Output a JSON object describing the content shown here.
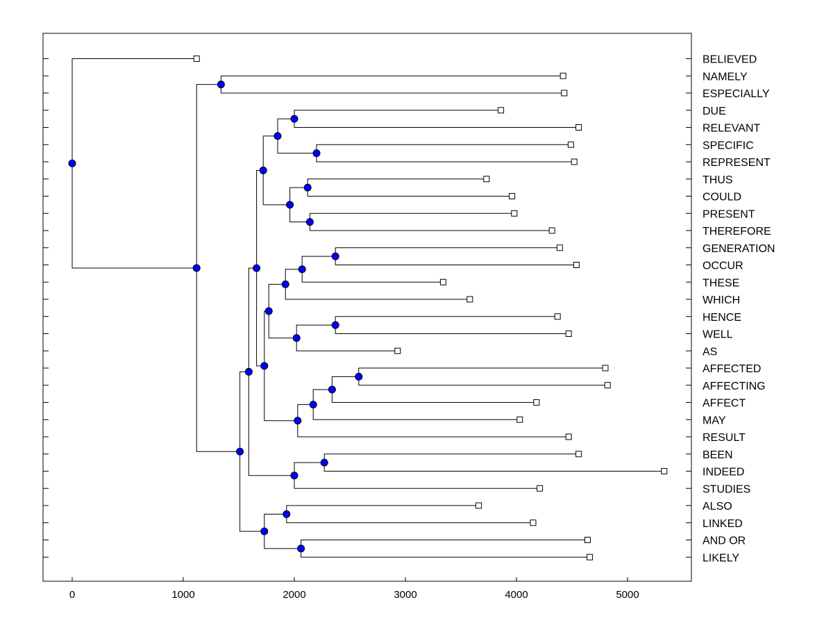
{
  "chart_data": {
    "type": "dendrogram",
    "title": "",
    "xlabel": "",
    "ylabel": "",
    "xlim": [
      -260,
      5600
    ],
    "x_ticks": [
      0,
      1000,
      2000,
      3000,
      4000,
      5000
    ],
    "leaves": [
      {
        "name": "BELIEVED",
        "value": 1120
      },
      {
        "name": "NAMELY",
        "value": 4420
      },
      {
        "name": "ESPECIALLY",
        "value": 4430
      },
      {
        "name": "DUE",
        "value": 3860
      },
      {
        "name": "RELEVANT",
        "value": 4560
      },
      {
        "name": "SPECIFIC",
        "value": 4490
      },
      {
        "name": "REPRESENT",
        "value": 4520
      },
      {
        "name": "THUS",
        "value": 3730
      },
      {
        "name": "COULD",
        "value": 3960
      },
      {
        "name": "PRESENT",
        "value": 3980
      },
      {
        "name": "THEREFORE",
        "value": 4320
      },
      {
        "name": "GENERATION",
        "value": 4390
      },
      {
        "name": "OCCUR",
        "value": 4540
      },
      {
        "name": "THESE",
        "value": 3340
      },
      {
        "name": "WHICH",
        "value": 3580
      },
      {
        "name": "HENCE",
        "value": 4370
      },
      {
        "name": "WELL",
        "value": 4470
      },
      {
        "name": "AS",
        "value": 2930
      },
      {
        "name": "AFFECTED",
        "value": 4800
      },
      {
        "name": "AFFECTING",
        "value": 4820
      },
      {
        "name": "AFFECT",
        "value": 4180
      },
      {
        "name": "MAY",
        "value": 4030
      },
      {
        "name": "RESULT",
        "value": 4470
      },
      {
        "name": "BEEN",
        "value": 4560
      },
      {
        "name": "INDEED",
        "value": 5330
      },
      {
        "name": "STUDIES",
        "value": 4210
      },
      {
        "name": "ALSO",
        "value": 3660
      },
      {
        "name": "LINKED",
        "value": 4150
      },
      {
        "name": "AND OR",
        "value": 4640
      },
      {
        "name": "LIKELY",
        "value": 4660
      }
    ],
    "nodes": [
      {
        "id": "n1",
        "value": 1340,
        "children": [
          "NAMELY",
          "ESPECIALLY"
        ]
      },
      {
        "id": "n2",
        "value": 2000,
        "children": [
          "DUE",
          "RELEVANT"
        ]
      },
      {
        "id": "n3",
        "value": 2200,
        "children": [
          "SPECIFIC",
          "REPRESENT"
        ]
      },
      {
        "id": "n4",
        "value": 1850,
        "children": [
          "n2",
          "n3"
        ]
      },
      {
        "id": "n5",
        "value": 2120,
        "children": [
          "THUS",
          "COULD"
        ]
      },
      {
        "id": "n6",
        "value": 2140,
        "children": [
          "PRESENT",
          "THEREFORE"
        ]
      },
      {
        "id": "n7",
        "value": 1960,
        "children": [
          "n5",
          "n6"
        ]
      },
      {
        "id": "n8",
        "value": 1720,
        "children": [
          "n4",
          "n7"
        ]
      },
      {
        "id": "n9",
        "value": 2370,
        "children": [
          "GENERATION",
          "OCCUR"
        ]
      },
      {
        "id": "n10",
        "value": 2070,
        "children": [
          "n9",
          "THESE"
        ]
      },
      {
        "id": "n11",
        "value": 1920,
        "children": [
          "n10",
          "WHICH"
        ]
      },
      {
        "id": "n12",
        "value": 2370,
        "children": [
          "HENCE",
          "WELL"
        ]
      },
      {
        "id": "n13",
        "value": 2020,
        "children": [
          "n12",
          "AS"
        ]
      },
      {
        "id": "n14",
        "value": 1770,
        "children": [
          "n11",
          "n13"
        ]
      },
      {
        "id": "n15",
        "value": 2580,
        "children": [
          "AFFECTED",
          "AFFECTING"
        ]
      },
      {
        "id": "n16",
        "value": 2340,
        "children": [
          "n15",
          "AFFECT"
        ]
      },
      {
        "id": "n17",
        "value": 2170,
        "children": [
          "n16",
          "MAY"
        ]
      },
      {
        "id": "n18",
        "value": 2030,
        "children": [
          "n17",
          "RESULT"
        ]
      },
      {
        "id": "n19",
        "value": 1730,
        "children": [
          "n14",
          "n18"
        ]
      },
      {
        "id": "n20",
        "value": 1660,
        "children": [
          "n8",
          "n19"
        ]
      },
      {
        "id": "n21",
        "value": 2270,
        "children": [
          "BEEN",
          "INDEED"
        ]
      },
      {
        "id": "n22",
        "value": 2000,
        "children": [
          "n21",
          "STUDIES"
        ]
      },
      {
        "id": "n23",
        "value": 1590,
        "children": [
          "n20",
          "n22"
        ]
      },
      {
        "id": "n24",
        "value": 1930,
        "children": [
          "ALSO",
          "LINKED"
        ]
      },
      {
        "id": "n25",
        "value": 2060,
        "children": [
          "AND OR",
          "LIKELY"
        ]
      },
      {
        "id": "n26",
        "value": 1730,
        "children": [
          "n24",
          "n25"
        ]
      },
      {
        "id": "n27",
        "value": 1510,
        "children": [
          "n23",
          "n26"
        ]
      },
      {
        "id": "n28",
        "value": 1120,
        "children": [
          "n1",
          "n27"
        ]
      },
      {
        "id": "n29",
        "value": 0,
        "children": [
          "BELIEVED",
          "n28"
        ]
      }
    ]
  }
}
